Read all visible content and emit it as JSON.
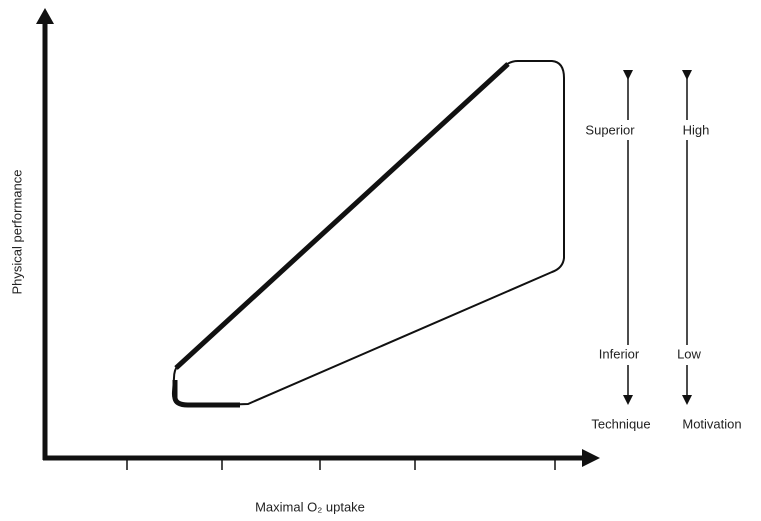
{
  "axes": {
    "y_label": "Physical performance",
    "x_label": "Maximal O₂ uptake"
  },
  "scales": [
    {
      "top": "Superior",
      "bottom": "Inferior",
      "name": "Technique"
    },
    {
      "top": "High",
      "bottom": "Low",
      "name": "Motivation"
    }
  ]
}
